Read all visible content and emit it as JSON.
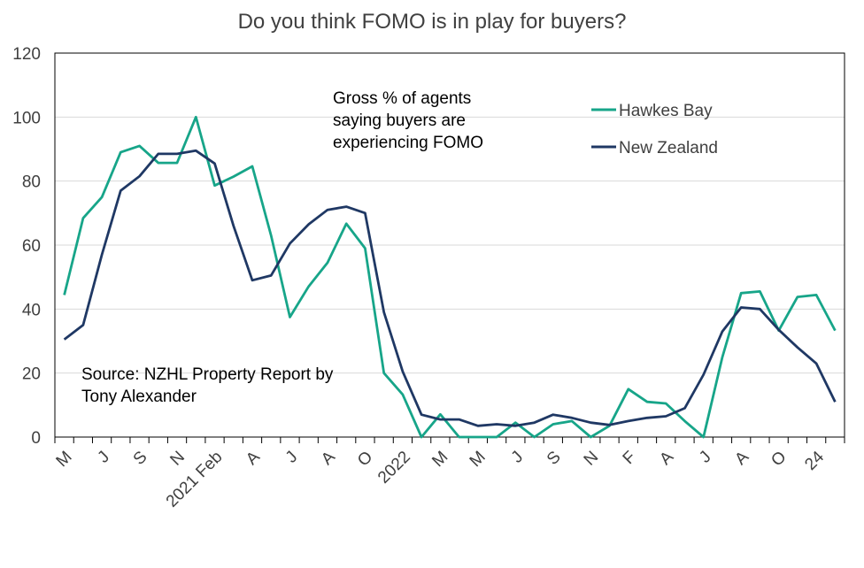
{
  "chart_data": {
    "type": "line",
    "title": "Do you think FOMO is in play for buyers?",
    "annotation": "Gross % of agents saying buyers are experiencing FOMO",
    "annotation_lines": [
      "Gross % of agents",
      "saying buyers are",
      "experiencing FOMO"
    ],
    "source_lines": [
      "Source: NZHL Property Report by",
      "Tony Alexander"
    ],
    "ylim": [
      0,
      120
    ],
    "yticks": [
      0,
      20,
      40,
      60,
      80,
      100,
      120
    ],
    "grid": true,
    "legend_position": "top-right",
    "x_count": 42,
    "xtick_labels": [
      {
        "i": 0,
        "label": "M"
      },
      {
        "i": 2,
        "label": "J"
      },
      {
        "i": 4,
        "label": "S"
      },
      {
        "i": 6,
        "label": "N"
      },
      {
        "i": 8,
        "label": "2021 Feb"
      },
      {
        "i": 10,
        "label": "A"
      },
      {
        "i": 12,
        "label": "J"
      },
      {
        "i": 14,
        "label": "A"
      },
      {
        "i": 16,
        "label": "O"
      },
      {
        "i": 18,
        "label": "2022"
      },
      {
        "i": 20,
        "label": "M"
      },
      {
        "i": 22,
        "label": "M"
      },
      {
        "i": 24,
        "label": "J"
      },
      {
        "i": 26,
        "label": "S"
      },
      {
        "i": 28,
        "label": "N"
      },
      {
        "i": 30,
        "label": "F"
      },
      {
        "i": 32,
        "label": "A"
      },
      {
        "i": 34,
        "label": "J"
      },
      {
        "i": 36,
        "label": "A"
      },
      {
        "i": 38,
        "label": "O"
      },
      {
        "i": 40,
        "label": "24"
      }
    ],
    "series": [
      {
        "name": "Hawkes Bay",
        "color": "#17a589",
        "values": [
          44.4,
          68.4,
          75.0,
          89.0,
          91.0,
          85.7,
          85.7,
          100.0,
          78.6,
          81.4,
          84.6,
          63.0,
          37.5,
          47.1,
          54.5,
          66.7,
          59.0,
          20.0,
          13.3,
          0.0,
          7.1,
          0.0,
          0.0,
          0.0,
          4.5,
          0.0,
          4.0,
          5.0,
          0.0,
          3.5,
          15.0,
          11.0,
          10.5,
          5.0,
          0.0,
          25.0,
          45.0,
          45.5,
          33.3,
          43.8,
          44.4,
          33.3
        ]
      },
      {
        "name": "New Zealand",
        "color": "#1f3864",
        "values": [
          30.5,
          35.0,
          57.0,
          77.0,
          81.5,
          88.5,
          88.5,
          89.5,
          85.5,
          66.0,
          49.0,
          50.5,
          60.5,
          66.5,
          71.0,
          72.0,
          70.0,
          39.0,
          20.5,
          7.0,
          5.5,
          5.5,
          3.5,
          4.0,
          3.5,
          4.5,
          7.0,
          6.0,
          4.5,
          3.8,
          5.0,
          6.0,
          6.5,
          9.0,
          19.5,
          33.0,
          40.5,
          40.0,
          33.5,
          28.0,
          23.0,
          11.0
        ]
      }
    ]
  }
}
